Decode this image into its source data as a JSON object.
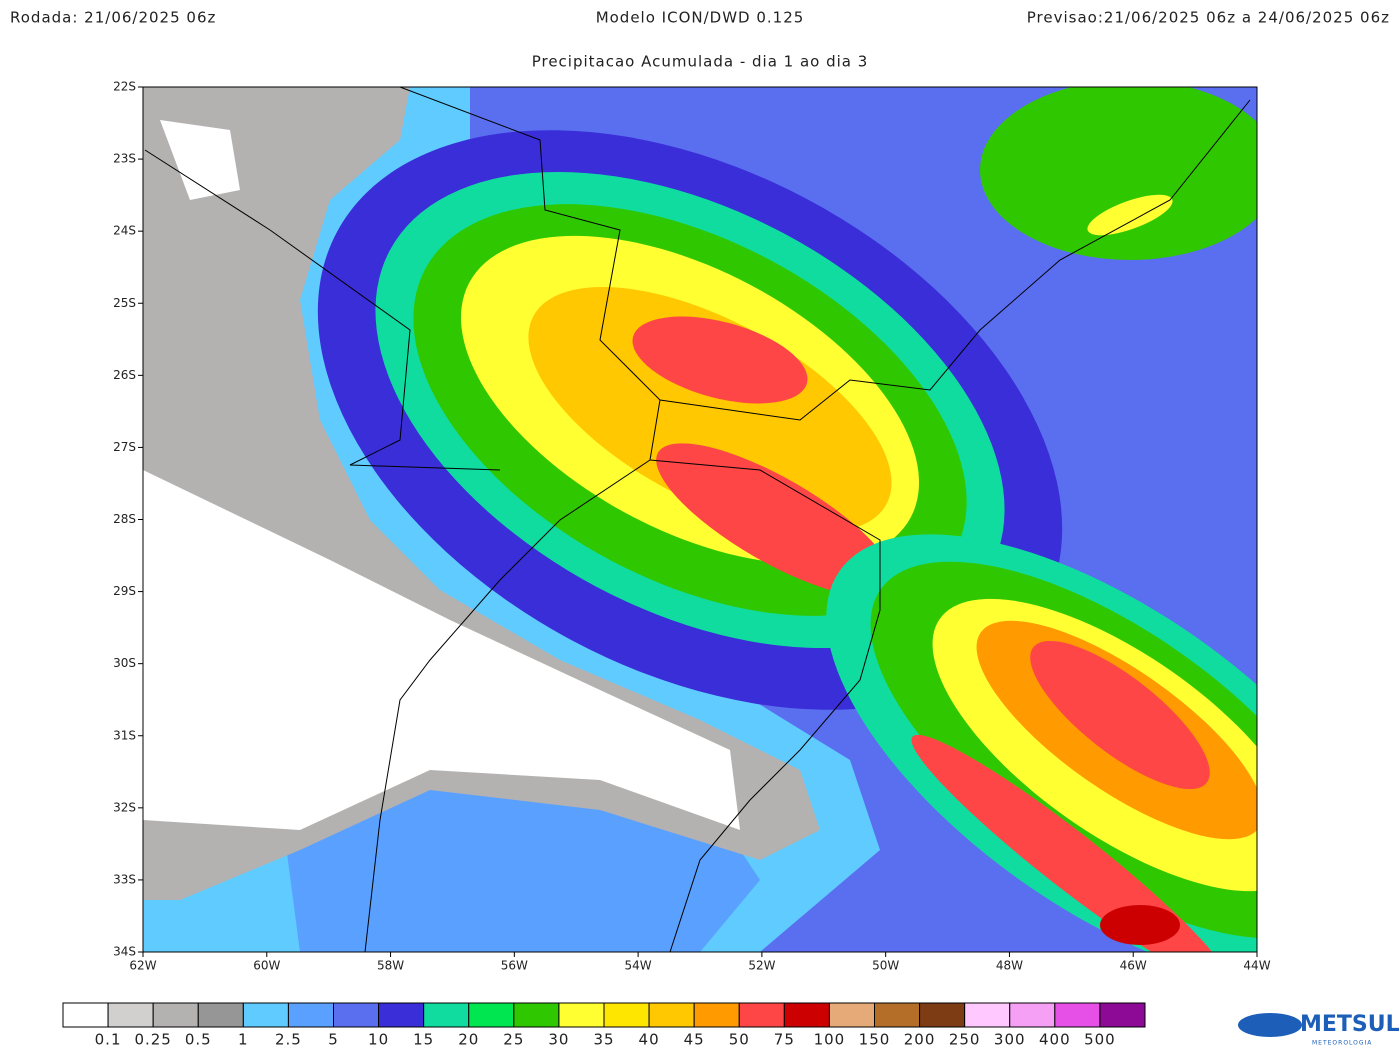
{
  "header": {
    "run": "Rodada: 21/06/2025 06z",
    "model": "Modelo ICON/DWD 0.125",
    "forecast": "Previsao:21/06/2025 06z a 24/06/2025 06z",
    "subtitle": "Precipitacao Acumulada - dia 1 ao dia 3"
  },
  "axes": {
    "lat": [
      "22S",
      "23S",
      "24S",
      "25S",
      "26S",
      "27S",
      "28S",
      "29S",
      "30S",
      "31S",
      "32S",
      "33S",
      "34S"
    ],
    "lon": [
      "62W",
      "60W",
      "58W",
      "56W",
      "54W",
      "52W",
      "50W",
      "48W",
      "46W",
      "44W"
    ]
  },
  "colorbar": {
    "labels": [
      "0.1",
      "0.25",
      "0.5",
      "1",
      "2.5",
      "5",
      "10",
      "15",
      "20",
      "25",
      "30",
      "35",
      "40",
      "45",
      "50",
      "75",
      "100",
      "150",
      "200",
      "250",
      "300",
      "400",
      "500"
    ],
    "colors": [
      "#ffffff",
      "#d2cfcf",
      "#b4b1b1",
      "#969696",
      "#5fcbff",
      "#5aa0ff",
      "#5a6ef0",
      "#3a2ed8",
      "#10dca0",
      "#00e650",
      "#2fc800",
      "#ffff32",
      "#ffe600",
      "#ffc800",
      "#ff9a00",
      "#ff4646",
      "#cc0000",
      "#e6aa78",
      "#b46e28",
      "#7d3c14",
      "#ffc8ff",
      "#f5a0f5",
      "#e650e6",
      "#8c0a96"
    ]
  },
  "logo": {
    "name": "METSUL",
    "tagline": "METEOROLOGIA"
  }
}
